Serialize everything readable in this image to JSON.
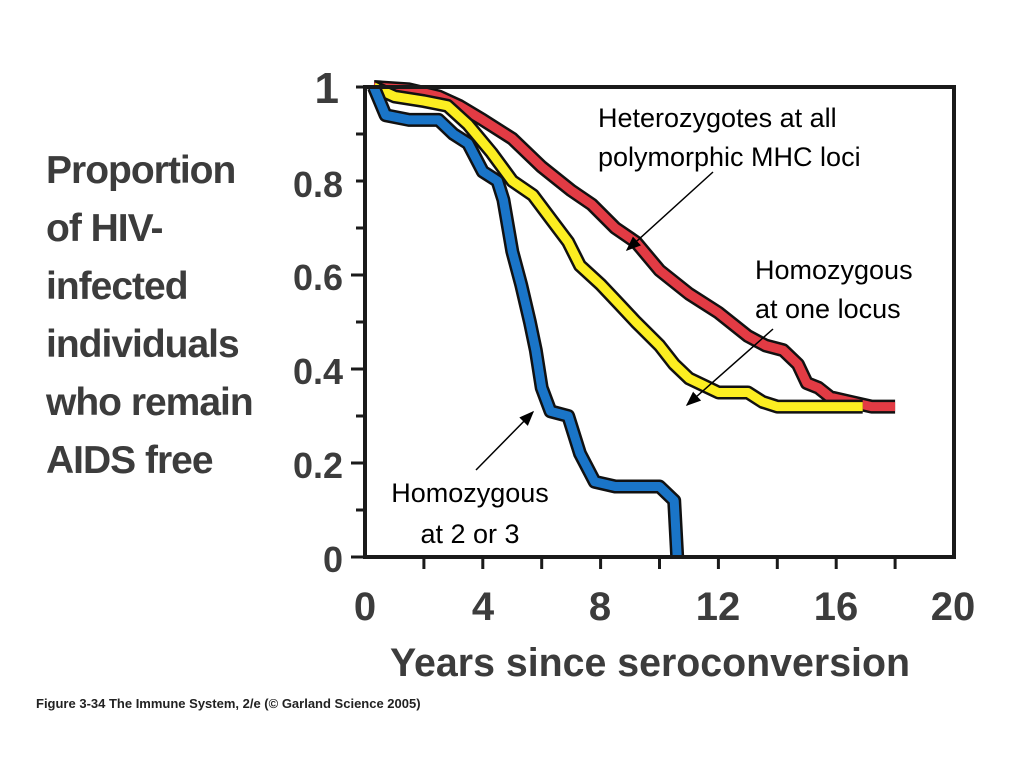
{
  "chart_data": {
    "type": "line",
    "ylabel_lines": [
      "Proportion",
      "of HIV-",
      "infected",
      "individuals",
      "who remain",
      "AIDS free"
    ],
    "xlabel": "Years since seroconversion",
    "xlim": [
      0,
      20
    ],
    "ylim": [
      0,
      1
    ],
    "x_ticks": [
      "0",
      "4",
      "8",
      "12",
      "16",
      "20"
    ],
    "y_ticks": [
      "0",
      "0.2",
      "0.4",
      "0.6",
      "0.8",
      "1"
    ],
    "grid": false,
    "series": [
      {
        "name": "Heterozygotes at all polymorphic MHC loci",
        "color": "#e23b44",
        "points": [
          [
            0.3,
            1.0
          ],
          [
            1.5,
            0.995
          ],
          [
            2.5,
            0.98
          ],
          [
            3.2,
            0.96
          ],
          [
            4.0,
            0.93
          ],
          [
            5.0,
            0.89
          ],
          [
            6.0,
            0.83
          ],
          [
            7.0,
            0.78
          ],
          [
            7.7,
            0.75
          ],
          [
            8.5,
            0.7
          ],
          [
            9.2,
            0.67
          ],
          [
            10.0,
            0.61
          ],
          [
            11.0,
            0.56
          ],
          [
            12.0,
            0.52
          ],
          [
            13.0,
            0.47
          ],
          [
            13.6,
            0.45
          ],
          [
            14.2,
            0.44
          ],
          [
            14.7,
            0.41
          ],
          [
            15.0,
            0.37
          ],
          [
            15.4,
            0.36
          ],
          [
            15.8,
            0.34
          ],
          [
            16.5,
            0.33
          ],
          [
            17.2,
            0.32
          ],
          [
            18.0,
            0.32
          ]
        ]
      },
      {
        "name": "Homozygous at one locus",
        "color": "#fcee21",
        "points": [
          [
            0.3,
            1.0
          ],
          [
            1.0,
            0.98
          ],
          [
            2.0,
            0.97
          ],
          [
            2.8,
            0.96
          ],
          [
            3.5,
            0.92
          ],
          [
            4.3,
            0.86
          ],
          [
            5.0,
            0.8
          ],
          [
            5.7,
            0.77
          ],
          [
            6.3,
            0.72
          ],
          [
            6.9,
            0.67
          ],
          [
            7.3,
            0.62
          ],
          [
            8.0,
            0.58
          ],
          [
            8.6,
            0.54
          ],
          [
            9.2,
            0.5
          ],
          [
            10.0,
            0.45
          ],
          [
            10.5,
            0.41
          ],
          [
            11.0,
            0.38
          ],
          [
            12.0,
            0.35
          ],
          [
            13.0,
            0.35
          ],
          [
            13.5,
            0.33
          ],
          [
            14.0,
            0.32
          ],
          [
            15.0,
            0.32
          ],
          [
            16.9,
            0.32
          ]
        ]
      },
      {
        "name": "Homozygous at 2 or 3",
        "color": "#1a75c8",
        "points": [
          [
            0.3,
            1.0
          ],
          [
            0.7,
            0.94
          ],
          [
            1.5,
            0.93
          ],
          [
            2.5,
            0.93
          ],
          [
            3.0,
            0.9
          ],
          [
            3.5,
            0.88
          ],
          [
            4.0,
            0.82
          ],
          [
            4.5,
            0.8
          ],
          [
            4.7,
            0.76
          ],
          [
            5.0,
            0.65
          ],
          [
            5.3,
            0.58
          ],
          [
            5.6,
            0.5
          ],
          [
            5.8,
            0.44
          ],
          [
            6.0,
            0.36
          ],
          [
            6.3,
            0.31
          ],
          [
            6.9,
            0.3
          ],
          [
            7.3,
            0.22
          ],
          [
            7.8,
            0.16
          ],
          [
            8.5,
            0.15
          ],
          [
            10.0,
            0.15
          ],
          [
            10.5,
            0.12
          ],
          [
            10.6,
            0.0
          ]
        ]
      }
    ],
    "annotations": [
      {
        "lines": [
          "Heterozygotes at all",
          "polymorphic MHC loci"
        ]
      },
      {
        "lines": [
          "Homozygous",
          "at one locus"
        ]
      },
      {
        "lines": [
          "Homozygous",
          "at 2 or 3"
        ]
      }
    ]
  },
  "caption": "Figure 3-34  The Immune System, 2/e (© Garland Science 2005)"
}
